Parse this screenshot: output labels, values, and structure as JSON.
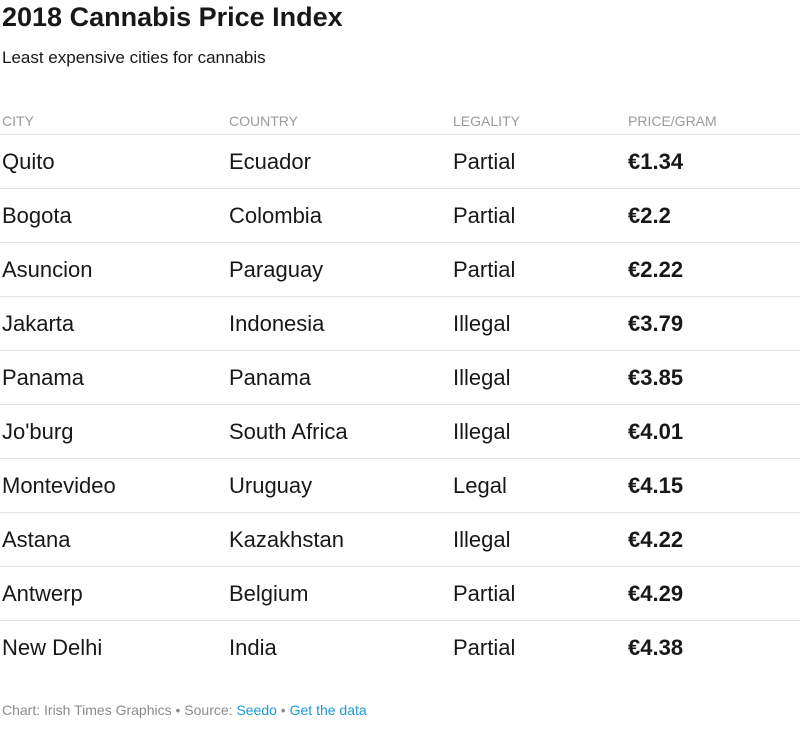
{
  "title": "2018 Cannabis Price Index",
  "subtitle": "Least expensive cities for cannabis",
  "link_color": "#1a9ad6",
  "chart_data": {
    "type": "table",
    "title": "2018 Cannabis Price Index",
    "subtitle": "Least expensive cities for cannabis",
    "columns": [
      "CITY",
      "COUNTRY",
      "LEGALITY",
      "PRICE/GRAM"
    ],
    "rows": [
      [
        "Quito",
        "Ecuador",
        "Partial",
        "€1.34"
      ],
      [
        "Bogota",
        "Colombia",
        "Partial",
        "€2.2"
      ],
      [
        "Asuncion",
        "Paraguay",
        "Partial",
        "€2.22"
      ],
      [
        "Jakarta",
        "Indonesia",
        "Illegal",
        "€3.79"
      ],
      [
        "Panama",
        "Panama",
        "Illegal",
        "€3.85"
      ],
      [
        "Jo'burg",
        "South Africa",
        "Illegal",
        "€4.01"
      ],
      [
        "Montevideo",
        "Uruguay",
        "Legal",
        "€4.15"
      ],
      [
        "Astana",
        "Kazakhstan",
        "Illegal",
        "€4.22"
      ],
      [
        "Antwerp",
        "Belgium",
        "Partial",
        "€4.29"
      ],
      [
        "New Delhi",
        "India",
        "Partial",
        "€4.38"
      ]
    ]
  },
  "footer": {
    "credit": "Chart: Irish Times Graphics",
    "sep1": " • ",
    "source_label": "Source: ",
    "source_link": "Seedo",
    "sep2": " • ",
    "data_link": "Get the data"
  }
}
